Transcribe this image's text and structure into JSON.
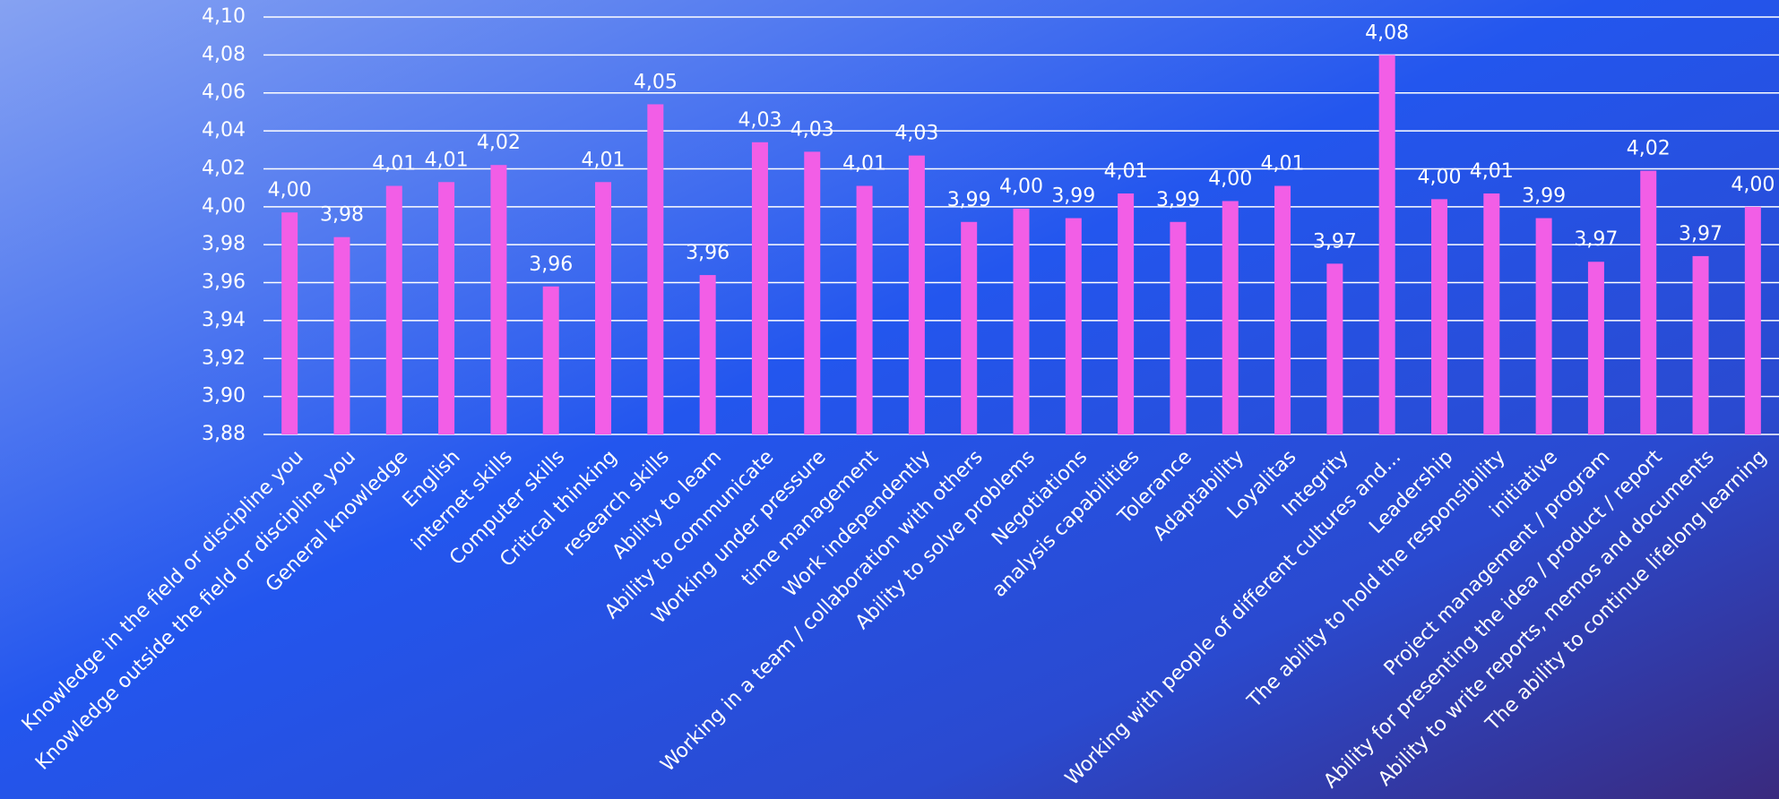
{
  "chart_data": {
    "type": "bar",
    "categories": [
      "Knowledge in the field or discipline you",
      "Knowledge outside the field or discipline you",
      "General knowledge",
      "English",
      "internet skills",
      "Computer skills",
      "Critical thinking",
      "research skills",
      "Ability to learn",
      "Ability to communicate",
      "Working under pressure",
      "time management",
      "Work independently",
      "Working in a team / collaboration with others",
      "Ability to solve problems",
      "Negotiations",
      "analysis capabilities",
      "Tolerance",
      "Adaptability",
      "Loyalitas",
      "Integrity",
      "Working with people of different cultures and...",
      "Leadership",
      "The ability to hold the responsibility",
      "initiative",
      "Project management / program",
      "Ability for presenting the idea / product / report",
      "Ability to write reports, memos and documents",
      "The ability to continue lifelong learning"
    ],
    "values": [
      3.997,
      3.984,
      4.011,
      4.013,
      4.022,
      3.958,
      4.013,
      4.054,
      3.964,
      4.034,
      4.029,
      4.011,
      4.027,
      3.992,
      3.999,
      3.994,
      4.007,
      3.992,
      4.003,
      4.011,
      3.97,
      4.08,
      4.004,
      4.007,
      3.994,
      3.971,
      4.019,
      3.974,
      4.0
    ],
    "value_labels": [
      "4,00",
      "3,98",
      "4,01",
      "4,01",
      "4,02",
      "3,96",
      "4,01",
      "4,05",
      "3,96",
      "4,03",
      "4,03",
      "4,01",
      "4,03",
      "3,99",
      "4,00",
      "3,99",
      "4,01",
      "3,99",
      "4,00",
      "4,01",
      "3,97",
      "4,08",
      "4,00",
      "4,01",
      "3,99",
      "3,97",
      "4,02",
      "3,97",
      "4,00"
    ],
    "color": "#f25ee6",
    "ylim": [
      3.88,
      4.1
    ],
    "yticks": [
      {
        "value": 3.88,
        "label": "3,88"
      },
      {
        "value": 3.9,
        "label": "3,90"
      },
      {
        "value": 3.92,
        "label": "3,92"
      },
      {
        "value": 3.94,
        "label": "3,94"
      },
      {
        "value": 3.96,
        "label": "3,96"
      },
      {
        "value": 3.98,
        "label": "3,98"
      },
      {
        "value": 4.0,
        "label": "4,00"
      },
      {
        "value": 4.02,
        "label": "4,02"
      },
      {
        "value": 4.04,
        "label": "4,04"
      },
      {
        "value": 4.06,
        "label": "4,06"
      },
      {
        "value": 4.08,
        "label": "4,08"
      },
      {
        "value": 4.1,
        "label": "4,10"
      }
    ],
    "grid": true
  }
}
